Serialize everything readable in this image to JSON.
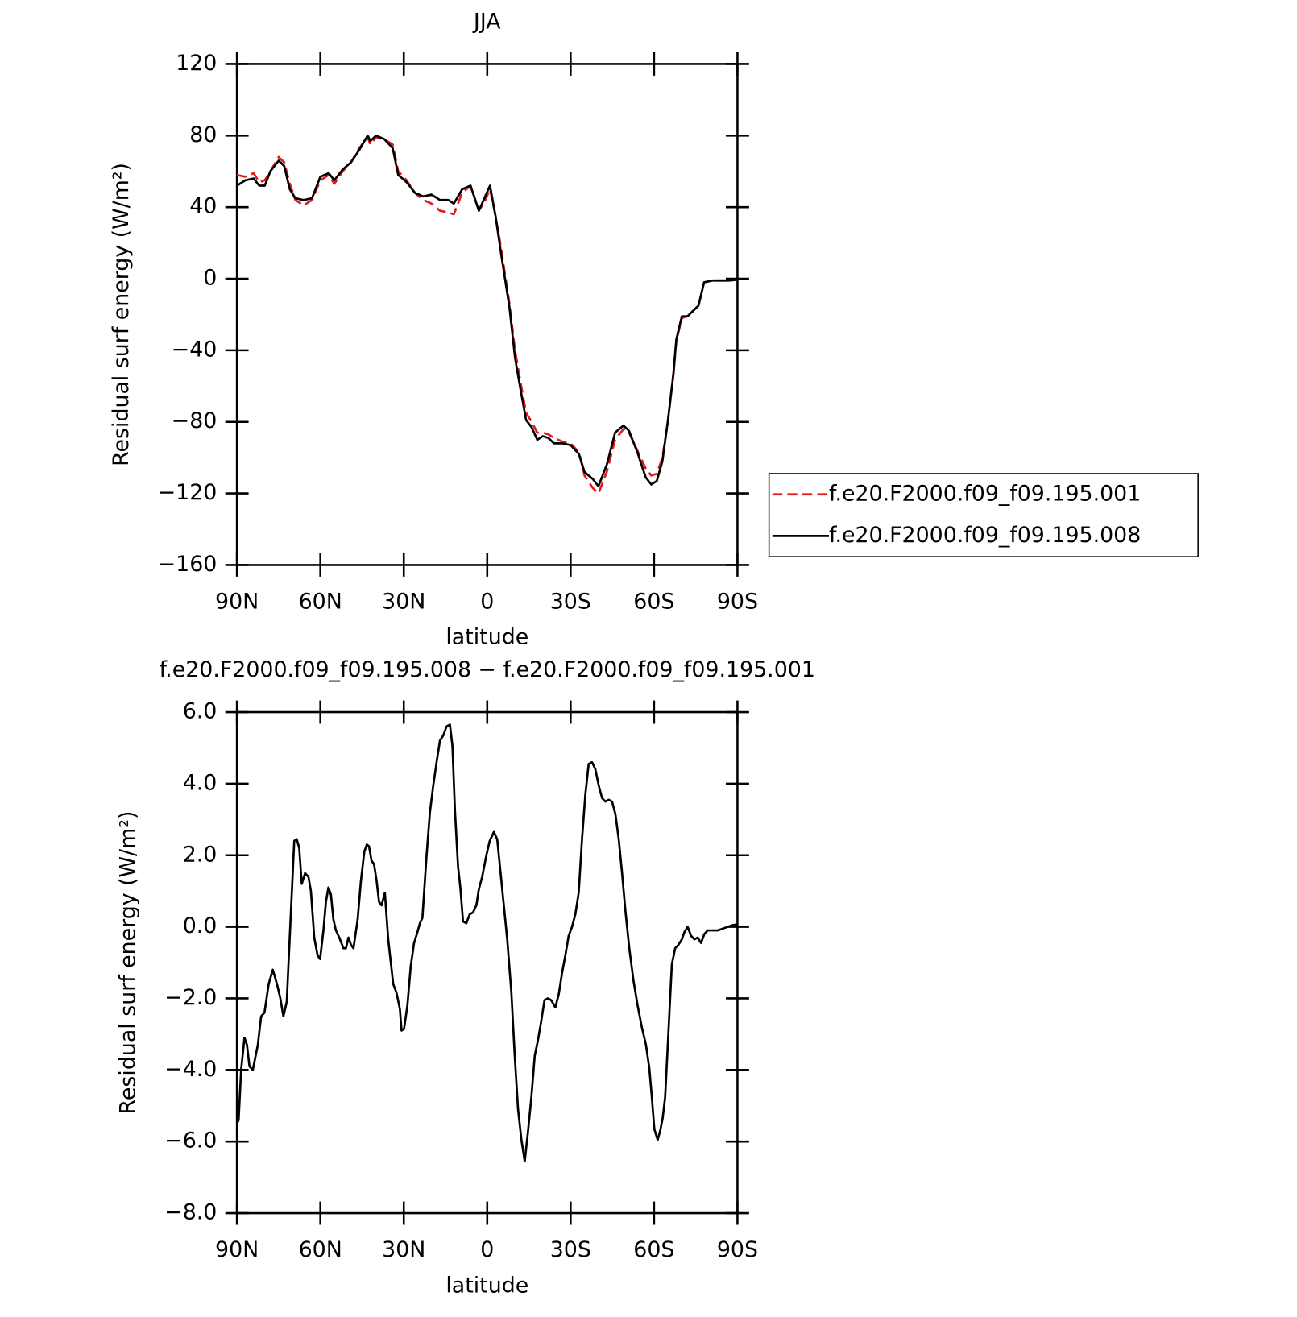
{
  "chart_data": [
    {
      "type": "line",
      "title": "JJA",
      "xlabel": "latitude",
      "ylabel": "Residual surf energy (W/m²)",
      "x": [
        90,
        87,
        84,
        82,
        80,
        78,
        75,
        73,
        71,
        69,
        66,
        63,
        60,
        57,
        55,
        52,
        49,
        46,
        43,
        42,
        40,
        37,
        34,
        32,
        29,
        26,
        23,
        20,
        17,
        14,
        12,
        9,
        6,
        3,
        1,
        -1,
        -3,
        -5,
        -8,
        -10,
        -12,
        -14,
        -16,
        -18,
        -20,
        -22,
        -24,
        -27,
        -30,
        -33,
        -35,
        -38,
        -40,
        -43,
        -46,
        -49,
        -51,
        -54,
        -57,
        -59,
        -61,
        -63,
        -65,
        -67,
        -68,
        -70,
        -72,
        -74,
        -76,
        -78,
        -81,
        -84,
        -87,
        -90
      ],
      "series": [
        {
          "name": "f.e20.F2000.f09_f09.195.001",
          "color": "#e31a1c",
          "dash": true,
          "values": [
            58,
            57,
            59,
            54,
            55,
            60,
            68,
            65,
            53,
            44,
            41,
            44,
            55,
            58,
            53,
            60,
            65,
            73,
            79,
            75,
            79,
            78,
            75,
            60,
            55,
            48,
            44,
            42,
            38,
            37,
            36,
            48,
            52,
            38,
            43,
            50,
            35,
            17,
            -14,
            -40,
            -58,
            -75,
            -80,
            -86,
            -86,
            -87,
            -89,
            -91,
            -92,
            -97,
            -110,
            -117,
            -120,
            -108,
            -90,
            -84,
            -86,
            -96,
            -106,
            -110,
            -109,
            -100,
            -80,
            -52,
            -35,
            -22,
            -21,
            -18,
            -15,
            -2,
            -1,
            -1,
            -1,
            -0.5
          ]
        },
        {
          "name": "f.e20.F2000.f09_f09.195.008",
          "color": "#000000",
          "dash": false,
          "values": [
            52,
            55,
            56,
            52,
            52,
            60,
            66,
            63,
            50,
            45,
            44,
            45,
            57,
            59,
            55,
            61,
            65,
            72,
            80,
            77,
            80,
            78,
            73,
            58,
            54,
            48,
            46,
            47,
            44,
            44,
            42,
            50,
            52,
            38,
            45,
            52,
            35,
            14,
            -16,
            -44,
            -62,
            -79,
            -83,
            -90,
            -88,
            -89,
            -92,
            -92,
            -93,
            -98,
            -108,
            -112,
            -116,
            -104,
            -86,
            -82,
            -85,
            -97,
            -111,
            -115,
            -113,
            -102,
            -79,
            -53,
            -34,
            -21,
            -21,
            -18,
            -15,
            -2,
            -1,
            -1,
            -1,
            -0.5
          ]
        }
      ],
      "xlim": [
        90,
        -90
      ],
      "xticks": [
        {
          "value": 90,
          "label": "90N"
        },
        {
          "value": 60,
          "label": "60N"
        },
        {
          "value": 30,
          "label": "30N"
        },
        0,
        {
          "value": -30,
          "label": "30S"
        },
        {
          "value": -60,
          "label": "60S"
        },
        {
          "value": -90,
          "label": "90S"
        }
      ],
      "ylim": [
        -160,
        120
      ],
      "yticks": [
        120,
        80,
        40,
        0,
        {
          "value": -40,
          "label": "−40"
        },
        {
          "value": -80,
          "label": "−80"
        },
        {
          "value": -120,
          "label": "−120"
        },
        {
          "value": -160,
          "label": "−160"
        }
      ],
      "legend": "right",
      "grid": false
    },
    {
      "type": "line",
      "title": "f.e20.F2000.f09_f09.195.008 − f.e20.F2000.f09_f09.195.001",
      "xlabel": "latitude",
      "ylabel": "Residual surf energy (W/m²)",
      "x": [
        90,
        89.4,
        88.5,
        87.3,
        86.4,
        85.5,
        84.3,
        82.5,
        81.3,
        80.1,
        78.6,
        77.1,
        75.6,
        74.4,
        73.3,
        72.1,
        70.9,
        69.4,
        68.5,
        67.6,
        66.7,
        65.5,
        64.3,
        63.4,
        62.2,
        61.0,
        60.1,
        58.9,
        58.0,
        57.1,
        56.2,
        55.3,
        54.4,
        53.2,
        51.7,
        50.8,
        49.9,
        49.0,
        48.1,
        46.6,
        45.4,
        44.2,
        43.3,
        42.5,
        41.6,
        40.7,
        39.8,
        38.9,
        38.0,
        36.8,
        35.6,
        33.8,
        32.6,
        31.4,
        30.8,
        29.9,
        28.7,
        27.5,
        26.3,
        25.1,
        24.2,
        23.3,
        21.8,
        20.6,
        19.4,
        18.2,
        17.0,
        15.8,
        14.6,
        13.4,
        12.5,
        11.6,
        10.5,
        9.6,
        8.7,
        7.5,
        6.3,
        5.1,
        3.9,
        3.0,
        1.8,
        0.3,
        -0.9,
        -2.4,
        -3.6,
        -4.5,
        -5.4,
        -7.2,
        -8.7,
        -9.9,
        -11.1,
        -12.3,
        -13.5,
        -14.7,
        -15.9,
        -17.1,
        -18.3,
        -19.4,
        -20.6,
        -21.8,
        -23.0,
        -24.5,
        -25.7,
        -26.9,
        -28.1,
        -29.3,
        -30.5,
        -31.7,
        -32.9,
        -34.1,
        -35.3,
        -36.5,
        -37.7,
        -38.9,
        -40.1,
        -41.3,
        -42.5,
        -43.7,
        -44.9,
        -46.1,
        -47.3,
        -48.5,
        -49.7,
        -51.1,
        -52.6,
        -54.1,
        -55.6,
        -57.1,
        -58.3,
        -59.2,
        -60.1,
        -61.3,
        -62.2,
        -63.1,
        -64.0,
        -65.2,
        -66.4,
        -67.6,
        -68.8,
        -70.0,
        -70.9,
        -72.1,
        -73.3,
        -74.5,
        -75.7,
        -76.9,
        -78.1,
        -79.3,
        -81.1,
        -82.9,
        -84.7,
        -86.5,
        -88.3,
        -90
      ],
      "series": [
        {
          "name": "f.e20.F2000.f09_f09.195.008 − f.e20.F2000.f09_f09.195.001",
          "color": "#000000",
          "dash": false,
          "values": [
            -5.5,
            -5.4,
            -4.0,
            -3.1,
            -3.3,
            -3.9,
            -4.0,
            -3.3,
            -2.5,
            -2.4,
            -1.6,
            -1.2,
            -1.6,
            -2.0,
            -2.5,
            -2.1,
            -0.1,
            2.4,
            2.45,
            2.2,
            1.2,
            1.5,
            1.4,
            1.0,
            -0.3,
            -0.8,
            -0.9,
            -0.1,
            0.7,
            1.1,
            0.9,
            0.2,
            -0.1,
            -0.3,
            -0.6,
            -0.6,
            -0.3,
            -0.5,
            -0.6,
            0.2,
            1.3,
            2.1,
            2.3,
            2.25,
            1.85,
            1.75,
            1.3,
            0.7,
            0.6,
            0.95,
            -0.35,
            -1.6,
            -1.85,
            -2.3,
            -2.9,
            -2.85,
            -2.2,
            -1.1,
            -0.45,
            -0.15,
            0.1,
            0.25,
            2.0,
            3.2,
            3.95,
            4.6,
            5.2,
            5.35,
            5.6,
            5.65,
            5.05,
            3.25,
            1.7,
            1.05,
            0.15,
            0.1,
            0.35,
            0.4,
            0.6,
            1.05,
            1.4,
            2.0,
            2.4,
            2.65,
            2.45,
            1.75,
            1.05,
            -0.35,
            -1.85,
            -3.6,
            -5.1,
            -5.95,
            -6.55,
            -5.7,
            -4.75,
            -3.6,
            -3.15,
            -2.65,
            -2.05,
            -2.0,
            -2.05,
            -2.25,
            -1.9,
            -1.3,
            -0.8,
            -0.25,
            0.0,
            0.35,
            0.95,
            2.45,
            3.7,
            4.55,
            4.6,
            4.4,
            3.95,
            3.6,
            3.5,
            3.55,
            3.5,
            3.15,
            2.45,
            1.5,
            0.45,
            -0.6,
            -1.5,
            -2.2,
            -2.8,
            -3.3,
            -3.95,
            -4.75,
            -5.65,
            -5.95,
            -5.7,
            -5.35,
            -4.75,
            -2.9,
            -1.05,
            -0.6,
            -0.5,
            -0.35,
            -0.15,
            0.0,
            -0.25,
            -0.35,
            -0.3,
            -0.45,
            -0.2,
            -0.1,
            -0.1,
            -0.1,
            -0.05,
            0.0,
            0.05,
            0.07
          ]
        }
      ],
      "xlim": [
        90,
        -90
      ],
      "xticks": [
        {
          "value": 90,
          "label": "90N"
        },
        {
          "value": 60,
          "label": "60N"
        },
        {
          "value": 30,
          "label": "30N"
        },
        0,
        {
          "value": -30,
          "label": "30S"
        },
        {
          "value": -60,
          "label": "60S"
        },
        {
          "value": -90,
          "label": "90S"
        }
      ],
      "ylim": [
        -8,
        6
      ],
      "yticks": [
        {
          "value": 6,
          "label": "6.0"
        },
        {
          "value": 4,
          "label": "4.0"
        },
        {
          "value": 2,
          "label": "2.0"
        },
        {
          "value": 0,
          "label": "0.0"
        },
        {
          "value": -2,
          "label": "−2.0"
        },
        {
          "value": -4,
          "label": "−4.0"
        },
        {
          "value": -6,
          "label": "−6.0"
        },
        {
          "value": -8,
          "label": "−8.0"
        }
      ],
      "grid": false
    }
  ]
}
